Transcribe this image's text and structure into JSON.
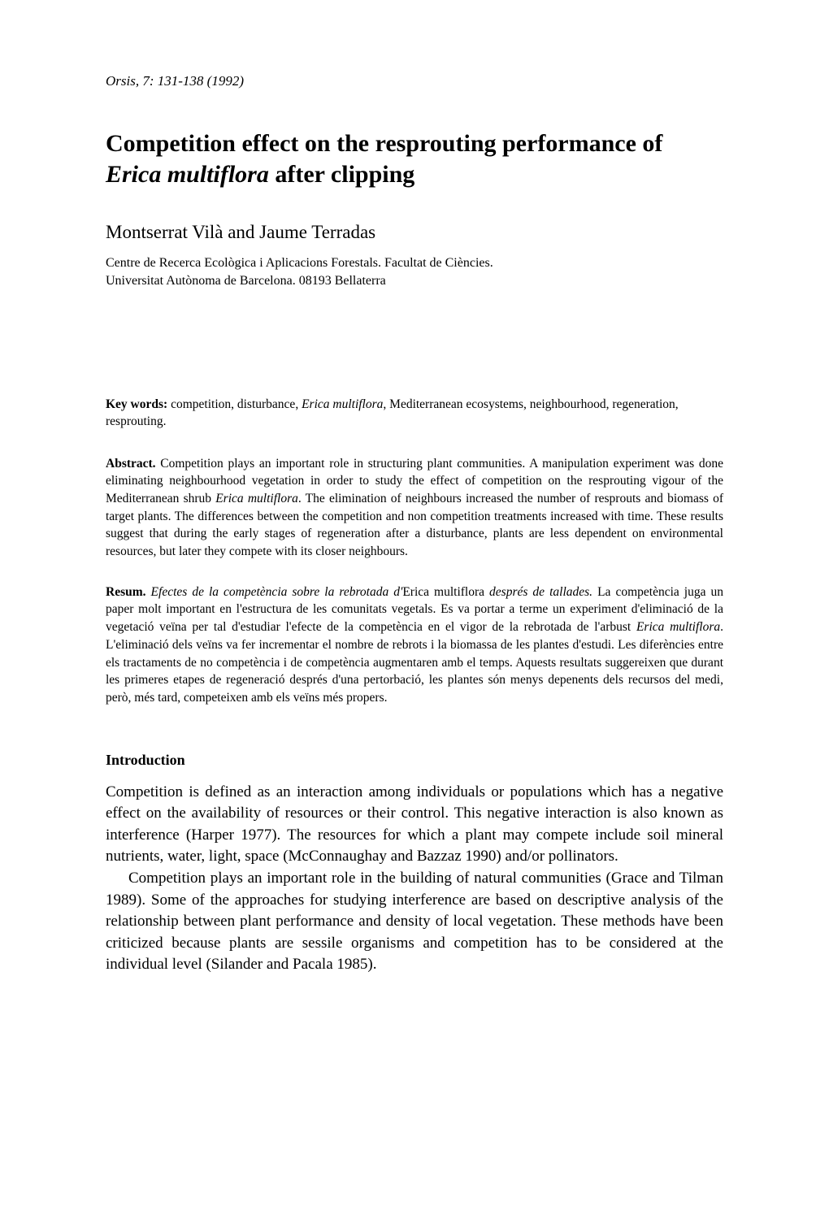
{
  "journal_ref": "Orsis, 7: 131-138 (1992)",
  "title_part1": "Competition effect on the resprouting performance of ",
  "title_italic": "Erica multiflora",
  "title_part2": " after clipping",
  "authors": "Montserrat Vilà and Jaume Terradas",
  "affiliation_line1": "Centre de Recerca Ecològica i Aplicacions Forestals. Facultat de Ciències.",
  "affiliation_line2": "Universitat Autònoma de Barcelona. 08193 Bellaterra",
  "keywords_label": "Key words:",
  "keywords_pre": " competition, disturbance, ",
  "keywords_italic": "Erica multiflora",
  "keywords_post": ", Mediterranean ecosystems, neighbourhood, regeneration, resprouting.",
  "abstract_label": "Abstract.",
  "abstract_pre": " Competition plays an important role in structuring plant communities. A manipulation experiment was done eliminating neighbourhood vegetation in order to study the effect of competition on the resprouting vigour of the Mediterranean shrub ",
  "abstract_italic": "Erica multiflora",
  "abstract_post": ". The elimination of neighbours increased the number of resprouts and biomass of target plants. The differences between the competition and non competition treatments increased with time. These results suggest that during the early stages of regeneration after a disturbance, plants are less dependent on environmental resources, but later they compete with its closer neighbours.",
  "resum_label": "Resum.",
  "resum_title_pre": " Efectes de la competència sobre la rebrotada d'",
  "resum_title_roman": "Erica multiflora",
  "resum_title_post": " després de tallades.",
  "resum_body_pre": " La competència juga un paper molt important en l'estructura de les comunitats vegetals. Es va portar a terme un experiment d'eliminació de la vegetació veïna per tal d'estudiar l'efecte de la competència en el vigor de la rebrotada de l'arbust ",
  "resum_body_italic": "Erica multiflora",
  "resum_body_post": ". L'eliminació dels veïns va fer incrementar el nombre de rebrots i la biomassa de les plantes d'estudi. Les diferències entre els tractaments de no competència i de competència augmentaren amb el temps. Aquests resultats suggereixen que durant les primeres etapes de regeneració després d'una pertorbació, les plantes són menys depenents dels recursos del medi, però, més tard, competeixen amb els veïns més propers.",
  "intro_heading": "Introduction",
  "intro_p1": "Competition is defined as an interaction among individuals or populations which has a negative effect on the availability of resources or their control. This negative interaction is also known as interference (Harper 1977). The resources for which a plant may compete include soil mineral nutrients, water, light, space (McConnaughay and Bazzaz 1990) and/or pollinators.",
  "intro_p2": "Competition plays an important role in the building of natural communities (Grace and Tilman 1989). Some of the approaches for studying interference are based on descriptive analysis of the relationship between plant performance and density of local vegetation. These methods have been criticized because plants are sessile organisms and competition has to be considered at the individual level (Silander and Pacala 1985)."
}
